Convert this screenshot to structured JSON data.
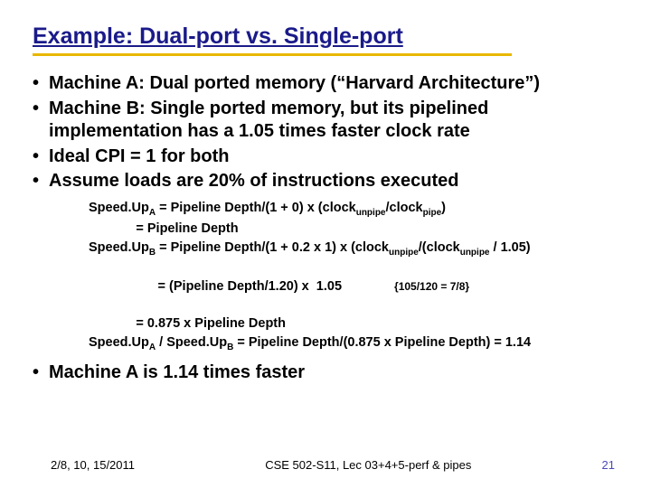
{
  "title": "Example: Dual-port vs. Single-port",
  "bullets_top": [
    "Machine A: Dual ported memory (“Harvard Architecture”)",
    "Machine B: Single ported memory, but its pipelined implementation has a 1.05 times faster clock rate",
    "Ideal CPI = 1 for both",
    "Assume loads are 20% of instructions executed"
  ],
  "calc": {
    "l1a": "Speed.Up",
    "l1a_sub": "A",
    "l1b": " = Pipeline Depth/(1 + 0) x (clock",
    "l1b_sub": "unpipe",
    "l1c": "/clock",
    "l1c_sub": "pipe",
    "l1d": ")",
    "l2": "             = Pipeline Depth",
    "l3a": "Speed.Up",
    "l3a_sub": "B",
    "l3b": " = Pipeline Depth/(1 + 0.2 x 1) x (clock",
    "l3b_sub": "unpipe",
    "l3c": "/(clock",
    "l3c_sub": "unpipe",
    "l3d": " / 1.05)",
    "l4a": "             = (Pipeline Depth/1.20) x  1.05",
    "l4_note": "{105/120 = 7/8}",
    "l5": "             = 0.875 x Pipeline Depth",
    "l6a": "Speed.Up",
    "l6a_sub": "A",
    "l6b": " / Speed.Up",
    "l6b_sub": "B",
    "l6c": " = Pipeline Depth/(0.875 x Pipeline Depth) = 1.14"
  },
  "bullet_bottom": "Machine A is 1.14 times faster",
  "footer": {
    "date": "2/8, 10, 15/2011",
    "course": "CSE 502-S11, Lec 03+4+5-perf & pipes",
    "pagenum": "21"
  }
}
